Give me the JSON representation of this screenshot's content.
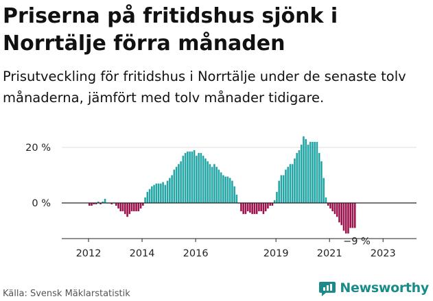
{
  "title": "Priserna på fritidshus sjönk i Norrtälje förra månaden",
  "subtitle": "Prisutveckling för fritidshus i Norrtälje under de senaste tolv månaderna, jämfört med tolv månader tidigare.",
  "source": "Källa: Svensk Mäklarstatistik",
  "brand": {
    "name": "Newsworthy",
    "icon": "newsworthy-logo-icon"
  },
  "colors": {
    "positive": "#21a4a4",
    "negative": "#9b0f4b",
    "grid": "#dddddd",
    "axis": "#222222"
  },
  "chart_data": {
    "type": "bar",
    "title": "Priserna på fritidshus sjönk i Norrtälje förra månaden",
    "xlabel": "",
    "ylabel": "",
    "y_unit": "%",
    "ylim": [
      -12,
      24
    ],
    "x_start": 2011.0,
    "x_end": 2024.25,
    "yticks": [
      {
        "value": 0,
        "label": "0 %"
      },
      {
        "value": 20,
        "label": "20 %"
      }
    ],
    "xticks": [
      {
        "value": 2012,
        "label": "2012"
      },
      {
        "value": 2014,
        "label": "2014"
      },
      {
        "value": 2016,
        "label": "2016"
      },
      {
        "value": 2019,
        "label": "2019"
      },
      {
        "value": 2021,
        "label": "2021"
      },
      {
        "value": 2023,
        "label": "2023"
      }
    ],
    "last_value_label": "−9 %",
    "start": {
      "year": 2012,
      "month": 1
    },
    "values": [
      -1,
      -1,
      -0.5,
      -0.5,
      0.5,
      -0.5,
      0.5,
      1.5,
      0,
      0,
      -0.5,
      0,
      -1,
      -2,
      -3,
      -3,
      -4,
      -5,
      -4,
      -3,
      -3,
      -3,
      -3,
      -2,
      -1,
      2,
      4,
      5,
      6,
      6.5,
      7,
      7,
      7,
      7.5,
      6.5,
      8,
      9,
      10,
      12,
      13,
      14,
      15,
      17,
      18,
      18.5,
      18.5,
      18.5,
      19,
      17,
      18,
      18,
      17,
      16,
      15,
      14,
      13,
      14,
      13,
      12,
      11,
      10,
      9.5,
      9.5,
      9,
      8,
      6,
      3,
      0,
      -3,
      -4,
      -4,
      -3,
      -3.5,
      -4,
      -4,
      -4,
      -3,
      -3,
      -4,
      -3,
      -2,
      -1,
      -1,
      1,
      4,
      8,
      10,
      10,
      12,
      13,
      14,
      14,
      16,
      18,
      19,
      21,
      24,
      23,
      21,
      22,
      22,
      22,
      22,
      18,
      15,
      9,
      2,
      -1,
      -2,
      -3,
      -4,
      -5,
      -7,
      -8,
      -10,
      -11,
      -11,
      -9,
      -9,
      -9
    ]
  }
}
